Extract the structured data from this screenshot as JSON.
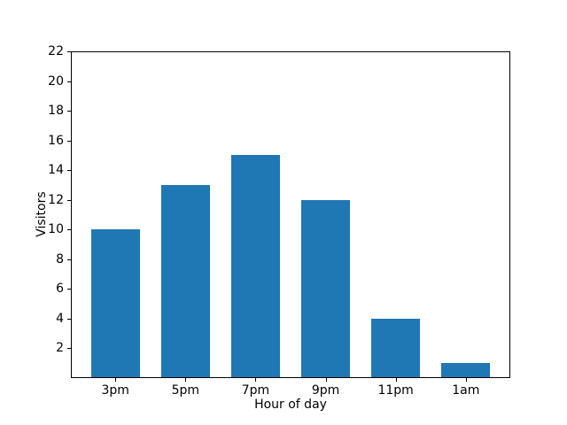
{
  "figure": {
    "background": "#ffffff",
    "frame_color": "#000000",
    "text_color": "#000000"
  },
  "chart_data": {
    "type": "bar",
    "title": "",
    "xlabel": "Hour of day",
    "ylabel": "Visitors",
    "categories": [
      "3pm",
      "5pm",
      "7pm",
      "9pm",
      "11pm",
      "1am"
    ],
    "values": [
      10,
      13,
      15,
      12,
      4,
      1
    ],
    "bar_color": "#1f77b4",
    "ylim": [
      0,
      22
    ],
    "yticks": [
      2,
      4,
      6,
      8,
      10,
      12,
      14,
      16,
      18,
      20,
      22
    ],
    "bar_rel_width": 0.7,
    "x_margin_frac": 0.05,
    "grid": false,
    "legend": false
  }
}
